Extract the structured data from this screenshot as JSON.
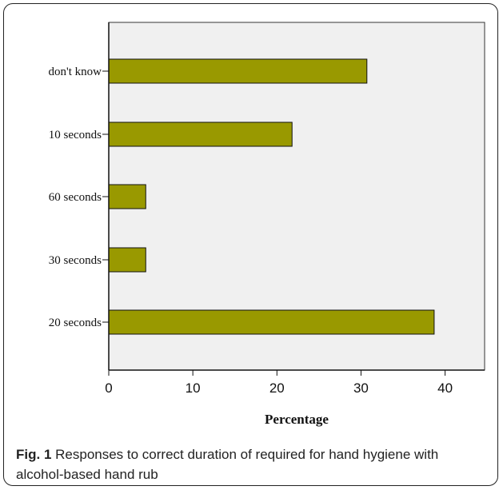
{
  "chart_data": {
    "type": "bar",
    "orientation": "horizontal",
    "categories": [
      "don't know",
      "10 seconds",
      "60 seconds",
      "30 seconds",
      "20 seconds"
    ],
    "values": [
      30.7,
      21.8,
      4.4,
      4.4,
      38.7
    ],
    "xlabel": "Percentage",
    "ylabel": "",
    "xlim": [
      0,
      44.7
    ],
    "x_ticks": [
      "0",
      "10",
      "20",
      "30",
      "40"
    ],
    "bar_color": "#999900",
    "plot_background": "#f0f0f0",
    "grid": false
  },
  "caption": {
    "figure_label": "Fig. 1",
    "text": " Responses to correct duration of required for hand hygiene with alcohol-based hand rub"
  }
}
